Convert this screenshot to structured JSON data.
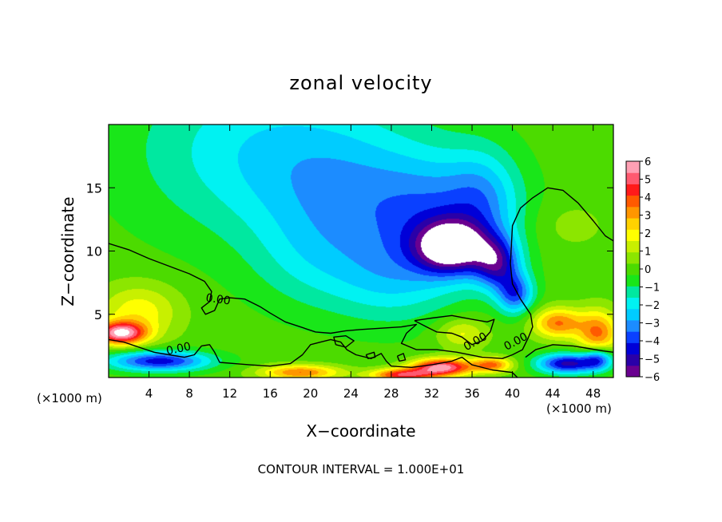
{
  "chart_data": {
    "type": "heatmap",
    "title": "zonal velocity",
    "xlabel": "X−coordinate",
    "ylabel": "Z−coordinate",
    "x_unit_left": "(×1000 m)",
    "x_unit_right": "(×1000 m)",
    "footer": "CONTOUR INTERVAL = 1.000E+01",
    "xlim": [
      0,
      50
    ],
    "ylim": [
      0,
      20
    ],
    "x_ticks": [
      4,
      8,
      12,
      16,
      20,
      24,
      28,
      32,
      36,
      40,
      44,
      48
    ],
    "x_tick_labels": [
      "4",
      "8",
      "12",
      "16",
      "20",
      "24",
      "28",
      "32",
      "36",
      "40",
      "44",
      "48"
    ],
    "y_ticks": [
      5,
      10,
      15
    ],
    "y_tick_labels": [
      "5",
      "10",
      "15"
    ],
    "colorbar": {
      "min": -6,
      "max": 6,
      "tick_labels": [
        "6",
        "5",
        "4",
        "3",
        "2",
        "1",
        "0",
        "−1",
        "−2",
        "−3",
        "−4",
        "−5",
        "−6"
      ],
      "colors": [
        "#6a0090",
        "#2a00a8",
        "#0000d8",
        "#0a40ff",
        "#1c8cff",
        "#00ccff",
        "#00f2f2",
        "#00e8a0",
        "#19e619",
        "#4cdb00",
        "#8ce600",
        "#c8f000",
        "#ffff00",
        "#ffd200",
        "#ff9600",
        "#ff5a00",
        "#ff1a1a",
        "#ff5a70",
        "#ffa0b4"
      ]
    },
    "contours": {
      "level_label": "0.00",
      "label_texts": [
        "0.00",
        "0.00",
        "0.00",
        "0.00"
      ],
      "lines": [
        [
          [
            0,
            10.6
          ],
          [
            2,
            10.1
          ],
          [
            4,
            9.4
          ],
          [
            6,
            8.8
          ],
          [
            8,
            8.2
          ],
          [
            9.5,
            7.6
          ],
          [
            10.2,
            6.8
          ],
          [
            10,
            6.0
          ],
          [
            9.2,
            5.5
          ],
          [
            9.6,
            5.0
          ],
          [
            10.5,
            5.3
          ],
          [
            11,
            6.2
          ],
          [
            12,
            6.3
          ],
          [
            13.5,
            6.2
          ],
          [
            15,
            5.6
          ],
          [
            16,
            5.1
          ],
          [
            17.5,
            4.4
          ],
          [
            19,
            4.0
          ],
          [
            20.5,
            3.6
          ],
          [
            22,
            3.5
          ],
          [
            23.5,
            3.7
          ],
          [
            25,
            3.8
          ],
          [
            27,
            3.9
          ],
          [
            29,
            4.0
          ],
          [
            30.5,
            4.2
          ],
          [
            29.5,
            3.5
          ],
          [
            29,
            2.7
          ],
          [
            30.5,
            2.2
          ],
          [
            32.5,
            2.2
          ],
          [
            34.5,
            2.0
          ],
          [
            37,
            1.6
          ],
          [
            39,
            1.5
          ],
          [
            40,
            1.8
          ],
          [
            41,
            2.2
          ],
          [
            41.6,
            3.2
          ],
          [
            42,
            4.0
          ],
          [
            41.8,
            5.0
          ],
          [
            40.8,
            6.2
          ],
          [
            40,
            7.4
          ],
          [
            39.8,
            9.0
          ],
          [
            40,
            12.0
          ],
          [
            40.8,
            13.4
          ],
          [
            42,
            14.2
          ],
          [
            43.5,
            15.0
          ],
          [
            45,
            14.8
          ],
          [
            46.5,
            13.8
          ],
          [
            48,
            12.4
          ],
          [
            49.2,
            11.2
          ],
          [
            50,
            10.8
          ]
        ],
        [
          [
            0,
            3.0
          ],
          [
            1.5,
            2.8
          ],
          [
            3,
            2.4
          ],
          [
            4.5,
            2.0
          ],
          [
            6,
            1.8
          ],
          [
            7.5,
            1.6
          ],
          [
            8.5,
            1.8
          ],
          [
            9.2,
            2.5
          ],
          [
            10,
            2.6
          ],
          [
            10.5,
            2.0
          ],
          [
            11,
            1.2
          ],
          [
            12.5,
            1.1
          ],
          [
            14,
            1.0
          ],
          [
            16,
            0.9
          ],
          [
            18,
            1.1
          ],
          [
            19.2,
            1.8
          ],
          [
            20,
            2.6
          ],
          [
            21,
            2.8
          ],
          [
            22,
            3.0
          ],
          [
            23,
            2.8
          ],
          [
            23.6,
            2.2
          ],
          [
            24.5,
            1.8
          ],
          [
            26,
            1.5
          ],
          [
            27,
            1.9
          ],
          [
            27.5,
            1.3
          ],
          [
            28,
            0.9
          ],
          [
            30,
            0.8
          ],
          [
            32,
            1.0
          ],
          [
            34,
            1.3
          ],
          [
            35,
            1.6
          ],
          [
            36,
            1.0
          ],
          [
            38,
            0.6
          ],
          [
            40,
            0.4
          ],
          [
            40.5,
            0.0
          ]
        ],
        [
          [
            22.5,
            2.6
          ],
          [
            23.5,
            2.4
          ],
          [
            24.3,
            2.9
          ],
          [
            23.5,
            3.3
          ],
          [
            22.3,
            3.2
          ],
          [
            22.5,
            2.6
          ]
        ],
        [
          [
            30.3,
            4.5
          ],
          [
            32,
            4.7
          ],
          [
            34,
            4.9
          ],
          [
            36,
            4.6
          ],
          [
            37.5,
            4.4
          ],
          [
            38.2,
            4.6
          ],
          [
            37.8,
            3.6
          ],
          [
            37,
            2.9
          ],
          [
            36,
            2.6
          ],
          [
            35,
            3.2
          ],
          [
            34,
            3.5
          ],
          [
            32.5,
            3.6
          ],
          [
            31.5,
            4.0
          ],
          [
            30.3,
            4.5
          ]
        ],
        [
          [
            41.3,
            1.6
          ],
          [
            42.3,
            2.2
          ],
          [
            44,
            2.6
          ],
          [
            46,
            2.5
          ],
          [
            47.5,
            2.3
          ],
          [
            49,
            2.1
          ],
          [
            50,
            2.0
          ]
        ],
        [
          [
            25.5,
            1.8
          ],
          [
            26.3,
            2.0
          ],
          [
            26.4,
            1.6
          ],
          [
            25.7,
            1.5
          ],
          [
            25.5,
            1.8
          ]
        ],
        [
          [
            28.6,
            1.7
          ],
          [
            29.2,
            1.9
          ],
          [
            29.4,
            1.4
          ],
          [
            28.8,
            1.3
          ],
          [
            28.6,
            1.7
          ]
        ]
      ]
    },
    "field_features": [
      {
        "type": "background",
        "value": 0.0
      },
      {
        "x": 15,
        "z": 18,
        "value": -2.0,
        "sx": 13,
        "sz": 7
      },
      {
        "x": 24,
        "z": 14,
        "value": -1.8,
        "sx": 9,
        "sz": 6
      },
      {
        "x": 33,
        "z": 12.5,
        "value": -2.6,
        "sx": 7,
        "sz": 5
      },
      {
        "x": 34,
        "z": 10.3,
        "value": -5.5,
        "sx": 3.5,
        "sz": 2
      },
      {
        "x": 38.5,
        "z": 9,
        "value": -3.8,
        "sx": 2.2,
        "sz": 2
      },
      {
        "x": 40.3,
        "z": 6.6,
        "value": -3.5,
        "sx": 1.8,
        "sz": 1.6
      },
      {
        "x": 37.2,
        "z": 14.2,
        "value": -1.6,
        "sx": 3.5,
        "sz": 4
      },
      {
        "x": 28,
        "z": 7.5,
        "value": -1.4,
        "sx": 6,
        "sz": 3.5
      },
      {
        "x": 20,
        "z": 9,
        "value": -0.9,
        "sx": 6,
        "sz": 4
      },
      {
        "x": 1.2,
        "z": 3.5,
        "value": 5.6,
        "sx": 2.5,
        "sz": 0.9
      },
      {
        "x": 3,
        "z": 5.2,
        "value": 2.0,
        "sx": 4,
        "sz": 2.2
      },
      {
        "x": 5,
        "z": 1.3,
        "value": -4.5,
        "sx": 5,
        "sz": 0.8
      },
      {
        "x": 19,
        "z": 0.4,
        "value": 3.5,
        "sx": 4,
        "sz": 0.6
      },
      {
        "x": 33,
        "z": 0.8,
        "value": 5.8,
        "sx": 3,
        "sz": 0.7
      },
      {
        "x": 29,
        "z": 0.2,
        "value": 4.5,
        "sx": 3,
        "sz": 0.5
      },
      {
        "x": 38,
        "z": 1.0,
        "value": 3.5,
        "sx": 2,
        "sz": 0.6
      },
      {
        "x": 35,
        "z": 3.5,
        "value": 1.8,
        "sx": 2.5,
        "sz": 1.2
      },
      {
        "x": 44.5,
        "z": 4.3,
        "value": 3.5,
        "sx": 2.5,
        "sz": 1.2
      },
      {
        "x": 48.5,
        "z": 3.5,
        "value": 3.5,
        "sx": 2,
        "sz": 1.8
      },
      {
        "x": 45.5,
        "z": 1.1,
        "value": -5.0,
        "sx": 3,
        "sz": 0.8
      },
      {
        "x": 48.5,
        "z": 1.5,
        "value": -3.5,
        "sx": 1.5,
        "sz": 0.9
      },
      {
        "x": 45.5,
        "z": 12,
        "value": 0.6,
        "sx": 4,
        "sz": 2
      }
    ]
  }
}
